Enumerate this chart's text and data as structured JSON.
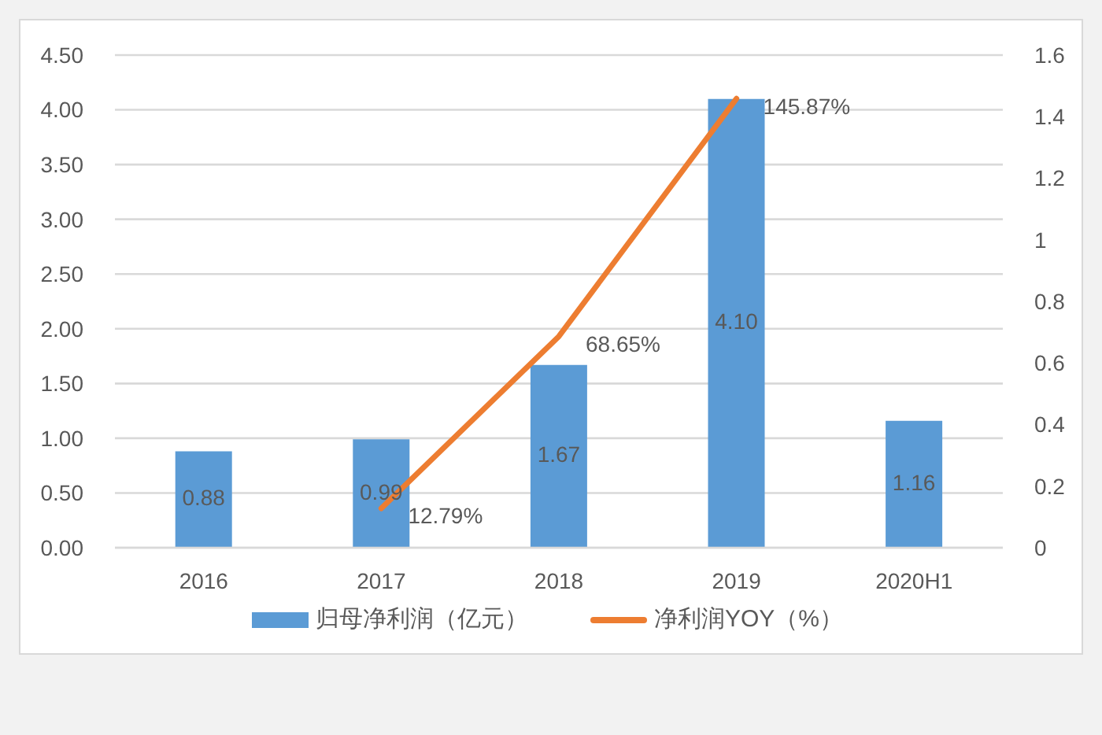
{
  "chart_data": {
    "type": "bar",
    "categories": [
      "2016",
      "2017",
      "2018",
      "2019",
      "2020H1"
    ],
    "series": [
      {
        "name": "归母净利润（亿元）",
        "color": "#5b9bd5",
        "values": [
          0.88,
          0.99,
          1.67,
          4.1,
          1.16
        ],
        "value_labels": [
          "0.88",
          "0.99",
          "1.67",
          "4.10",
          "1.16"
        ]
      },
      {
        "name": "净利润YOY（%）",
        "type": "line",
        "axis": "y2",
        "color": "#ed7d31",
        "values": [
          null,
          0.1279,
          0.6865,
          1.4587,
          null
        ],
        "value_labels": [
          null,
          "12.79%",
          "68.65%",
          "145.87%",
          null
        ]
      }
    ],
    "ylim": [
      0,
      4.5
    ],
    "yticks": [
      {
        "value": 0,
        "label": "0.00"
      },
      {
        "value": 0.5,
        "label": "0.50"
      },
      {
        "value": 1,
        "label": "1.00"
      },
      {
        "value": 1.5,
        "label": "1.50"
      },
      {
        "value": 2,
        "label": "2.00"
      },
      {
        "value": 2.5,
        "label": "2.50"
      },
      {
        "value": 3,
        "label": "3.00"
      },
      {
        "value": 3.5,
        "label": "3.50"
      },
      {
        "value": 4,
        "label": "4.00"
      },
      {
        "value": 4.5,
        "label": "4.50"
      }
    ],
    "y2lim": [
      0,
      1.6
    ],
    "y2ticks": [
      0,
      0.2,
      0.4,
      0.6,
      0.8,
      1,
      1.2,
      1.4,
      1.6
    ],
    "grid": "y",
    "legend": "bottom",
    "marker": "none",
    "line_style": "solid"
  }
}
